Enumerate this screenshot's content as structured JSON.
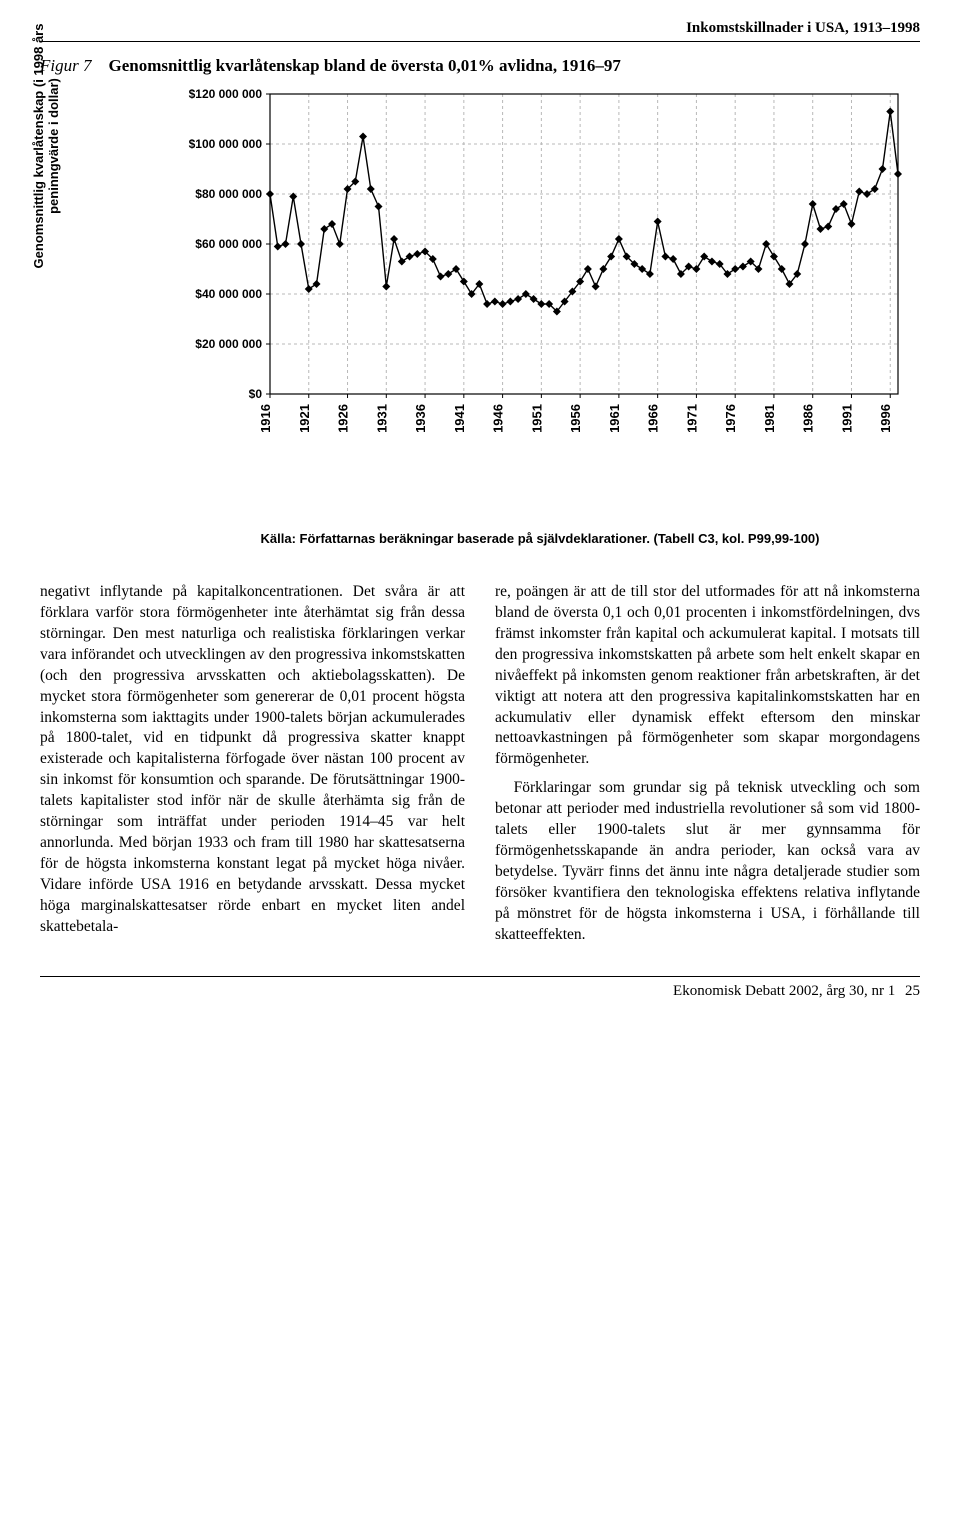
{
  "header": {
    "running_title": "Inkomstskillnader i USA, 1913–1998"
  },
  "figure": {
    "number": "Figur 7",
    "title": "Genomsnittlig kvarlåtenskap bland de översta 0,01% avlidna, 1916–97",
    "y_axis_label": "Genomsnittlig kvarlåtenskap (i 1998 års\npeninngvärde i dollar)",
    "source": "Källa: Författarnas beräkningar baserade på självdeklarationer. (Tabell C3, kol. P99,99-100)",
    "chart": {
      "type": "line",
      "ylim": [
        0,
        120000000
      ],
      "ytick_step": 20000000,
      "ytick_labels": [
        "$0",
        "$20 000 000",
        "$40 000 000",
        "$60 000 000",
        "$80 000 000",
        "$100 000 000",
        "$120 000 000"
      ],
      "xtick_step": 5,
      "xtick_labels": [
        "1916",
        "1921",
        "1926",
        "1931",
        "1936",
        "1941",
        "1946",
        "1951",
        "1956",
        "1961",
        "1966",
        "1971",
        "1976",
        "1981",
        "1986",
        "1991",
        "1996"
      ],
      "line_color": "#000000",
      "line_width": 1.4,
      "marker": "diamond",
      "marker_size": 6,
      "marker_fill": "#000000",
      "grid_color": "#b8b8b8",
      "grid_dash": "3 3",
      "frame_color": "#000000",
      "background_color": "#ffffff",
      "years": [
        1916,
        1917,
        1918,
        1919,
        1920,
        1921,
        1922,
        1923,
        1924,
        1925,
        1926,
        1927,
        1928,
        1929,
        1930,
        1931,
        1932,
        1933,
        1934,
        1935,
        1936,
        1937,
        1938,
        1939,
        1940,
        1941,
        1942,
        1943,
        1944,
        1945,
        1946,
        1947,
        1948,
        1949,
        1950,
        1951,
        1952,
        1953,
        1954,
        1955,
        1956,
        1957,
        1958,
        1959,
        1960,
        1961,
        1962,
        1963,
        1964,
        1965,
        1966,
        1967,
        1968,
        1969,
        1970,
        1971,
        1972,
        1973,
        1974,
        1975,
        1976,
        1977,
        1978,
        1979,
        1980,
        1981,
        1982,
        1983,
        1984,
        1985,
        1986,
        1987,
        1988,
        1989,
        1990,
        1991,
        1992,
        1993,
        1994,
        1995,
        1996,
        1997
      ],
      "values": [
        80,
        59,
        60,
        79,
        60,
        42,
        44,
        66,
        68,
        60,
        82,
        85,
        103,
        82,
        75,
        43,
        62,
        53,
        55,
        56,
        57,
        54,
        47,
        48,
        50,
        45,
        40,
        44,
        36,
        37,
        36,
        37,
        38,
        40,
        38,
        36,
        36,
        33,
        37,
        41,
        45,
        50,
        43,
        50,
        55,
        62,
        55,
        52,
        50,
        48,
        69,
        55,
        54,
        48,
        51,
        50,
        55,
        53,
        52,
        48,
        50,
        51,
        53,
        50,
        60,
        55,
        50,
        44,
        48,
        60,
        76,
        66,
        67,
        74,
        76,
        68,
        81,
        80,
        82,
        90,
        113,
        88
      ]
    }
  },
  "body": {
    "col1": "negativt inflytande på kapitalkoncentrationen. Det svåra är att förklara varför stora förmögenheter inte återhämtat sig från dessa störningar. Den mest naturliga och realistiska förklaringen verkar vara införandet och utvecklingen av den progressiva inkomstskatten (och den progressiva arvsskatten och aktiebolagsskatten). De mycket stora förmögenheter som genererar de 0,01 procent högsta inkomsterna som iakttagits under 1900-talets början ackumulerades på 1800-talet, vid en tidpunkt då progressiva skatter knappt existerade och kapitalisterna förfogade över nästan 100 procent av sin inkomst för konsumtion och sparande. De förutsättningar 1900-talets kapitalister stod inför när de skulle återhämta sig från de störningar som inträffat under perioden 1914–45 var helt annorlunda. Med början 1933 och fram till 1980 har skattesatserna för de högsta inkomsterna konstant legat på mycket höga nivåer. Vidare införde USA 1916 en betydande arvsskatt. Dessa mycket höga marginalskattesatser rörde enbart en mycket liten andel skattebetala-",
    "col2": "re, poängen är att de till stor del utformades för att nå inkomsterna bland de översta 0,1 och 0,01 procenten i inkomstfördelningen, dvs främst inkomster från kapital och ackumulerat kapital. I motsats till den progressiva inkomstskatten på arbete som helt enkelt skapar en nivåeffekt på inkomsten genom reaktioner från arbetskraften, är det viktigt att notera att den progressiva kapitalinkomstskatten har en ackumulativ eller dynamisk effekt eftersom den minskar nettoavkastningen på förmögenheter som skapar morgondagens förmögenheter.\n\nFörklaringar som grundar sig på teknisk utveckling och som betonar att perioder med industriella revolutioner så som vid 1800-talets eller 1900-talets slut är mer gynnsamma för förmögenhetsskapande än andra perioder, kan också vara av betydelse. Tyvärr finns det ännu inte några detaljerade studier som försöker kvantifiera den teknologiska effektens relativa inflytande på mönstret för de högsta inkomsterna i USA, i förhållande till skatteeffekten."
  },
  "footer": {
    "journal": "Ekonomisk Debatt 2002, årg 30, nr 1",
    "page": "25"
  }
}
